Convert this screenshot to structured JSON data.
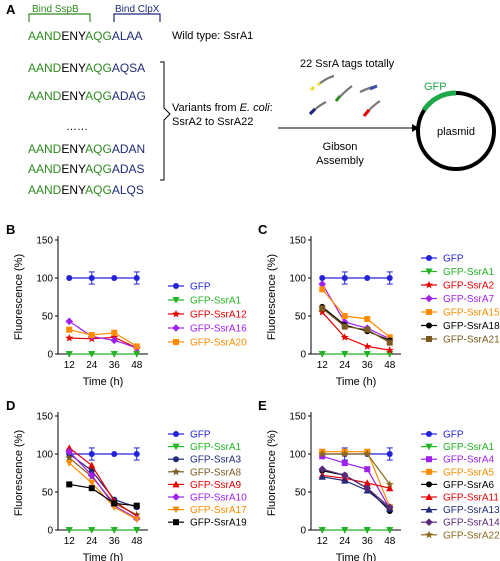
{
  "panel_a": {
    "letter": "A",
    "bind_sspb": "Bind SspB",
    "bind_clpx": "Bind ClpX",
    "seq_green": "AAND",
    "seq_black": "ENY",
    "seq_green2": "AQG",
    "sequences": [
      "ALAA",
      "AQSA",
      "ADAG",
      "ADAN",
      "ADAS",
      "ALQS"
    ],
    "dots": "……",
    "wild_type": "Wild type: SsrA1",
    "variants_line1_pre": "Variants from ",
    "variants_line1_italic": "E. coli",
    "variants_line1_post": ":",
    "variants_line2": "SsrA2 to SsrA22",
    "tags_total": "22 SsrA tags totally",
    "gibson1": "Gibson",
    "gibson2": "Assembly",
    "gfp": "GFP",
    "plasmid": "plasmid",
    "colors": {
      "green": "#2e8b1e",
      "navy": "#1f2a7a",
      "plasmid_green": "#1fa84a"
    }
  },
  "chart_data": [
    {
      "type": "line",
      "letter": "B",
      "xlabel": "Time (h)",
      "ylabel": "Fluorescence (%)",
      "x": [
        12,
        24,
        36,
        48
      ],
      "ylim": [
        0,
        150
      ],
      "yticks": [
        0,
        50,
        100,
        150
      ],
      "series": [
        {
          "name": "GFP",
          "color": "#2323d9",
          "marker": "circle",
          "values": [
            100,
            100,
            100,
            100
          ],
          "err": [
            0,
            8,
            0,
            8
          ]
        },
        {
          "name": "GFP-SsrA1",
          "color": "#22b422",
          "marker": "triangle-down",
          "values": [
            0,
            0,
            0,
            0
          ]
        },
        {
          "name": "GFP-SsrA12",
          "color": "#e60000",
          "marker": "star",
          "values": [
            21,
            20,
            22,
            8
          ]
        },
        {
          "name": "GFP-SsrA16",
          "color": "#a020f0",
          "marker": "diamond",
          "values": [
            43,
            23,
            18,
            8
          ]
        },
        {
          "name": "GFP-SsrA20",
          "color": "#ff8c00",
          "marker": "square",
          "values": [
            32,
            25,
            28,
            10
          ]
        }
      ]
    },
    {
      "type": "line",
      "letter": "C",
      "xlabel": "Time (h)",
      "ylabel": "Fluorescence (%)",
      "x": [
        12,
        24,
        36,
        48
      ],
      "ylim": [
        0,
        150
      ],
      "yticks": [
        0,
        50,
        100,
        150
      ],
      "series": [
        {
          "name": "GFP",
          "color": "#2323d9",
          "marker": "circle",
          "values": [
            100,
            100,
            100,
            100
          ],
          "err": [
            0,
            8,
            0,
            8
          ]
        },
        {
          "name": "GFP-SsrA1",
          "color": "#22b422",
          "marker": "triangle-down",
          "values": [
            0,
            0,
            0,
            0
          ]
        },
        {
          "name": "GFP-SsrA2",
          "color": "#e60000",
          "marker": "star",
          "values": [
            55,
            22,
            10,
            5
          ]
        },
        {
          "name": "GFP-SsrA7",
          "color": "#a020f0",
          "marker": "diamond",
          "values": [
            92,
            42,
            34,
            20
          ]
        },
        {
          "name": "GFP-SsrA15",
          "color": "#ff8c00",
          "marker": "square",
          "values": [
            85,
            50,
            46,
            22
          ]
        },
        {
          "name": "GFP-SsrA18",
          "color": "#000000",
          "marker": "circle",
          "values": [
            62,
            38,
            30,
            18
          ]
        },
        {
          "name": "GFP-SsrA21",
          "color": "#7a5a1e",
          "marker": "square",
          "values": [
            60,
            36,
            32,
            15
          ]
        }
      ]
    },
    {
      "type": "line",
      "letter": "D",
      "xlabel": "Time (h)",
      "ylabel": "Fluorescence (%)",
      "x": [
        12,
        24,
        36,
        48
      ],
      "ylim": [
        0,
        150
      ],
      "yticks": [
        0,
        50,
        100,
        150
      ],
      "series": [
        {
          "name": "GFP",
          "color": "#2323d9",
          "marker": "circle",
          "values": [
            100,
            100,
            100,
            100
          ],
          "err": [
            0,
            8,
            0,
            8
          ]
        },
        {
          "name": "GFP-SsrA1",
          "color": "#22b422",
          "marker": "triangle-down",
          "values": [
            0,
            0,
            0,
            0
          ]
        },
        {
          "name": "GFP-SsrA3",
          "color": "#1f2a7a",
          "marker": "circle",
          "values": [
            100,
            78,
            40,
            30
          ]
        },
        {
          "name": "GFP-SsrA8",
          "color": "#7a5a1e",
          "marker": "star",
          "values": [
            95,
            70,
            35,
            20
          ]
        },
        {
          "name": "GFP-SsrA9",
          "color": "#e60000",
          "marker": "triangle",
          "values": [
            108,
            85,
            38,
            18
          ]
        },
        {
          "name": "GFP-SsrA10",
          "color": "#a020f0",
          "marker": "diamond",
          "values": [
            103,
            72,
            32,
            15
          ]
        },
        {
          "name": "GFP-SsrA17",
          "color": "#ff8c00",
          "marker": "triangle-down",
          "values": [
            88,
            62,
            30,
            14
          ]
        },
        {
          "name": "GFP-SsrA19",
          "color": "#000000",
          "marker": "square",
          "values": [
            60,
            55,
            35,
            32
          ]
        }
      ]
    },
    {
      "type": "line",
      "letter": "E",
      "xlabel": "Time (h)",
      "ylabel": "Fluorescence (%)",
      "x": [
        12,
        24,
        36,
        48
      ],
      "ylim": [
        0,
        150
      ],
      "yticks": [
        0,
        50,
        100,
        150
      ],
      "series": [
        {
          "name": "GFP",
          "color": "#2323d9",
          "marker": "circle",
          "values": [
            100,
            100,
            100,
            100
          ],
          "err": [
            0,
            8,
            0,
            8
          ]
        },
        {
          "name": "GFP-SsrA1",
          "color": "#22b422",
          "marker": "triangle-down",
          "values": [
            0,
            0,
            0,
            0
          ]
        },
        {
          "name": "GFP-SsrA4",
          "color": "#a020f0",
          "marker": "square",
          "values": [
            97,
            88,
            80,
            28
          ]
        },
        {
          "name": "GFP-SsrA5",
          "color": "#ff8c00",
          "marker": "square",
          "values": [
            103,
            103,
            103,
            30
          ]
        },
        {
          "name": "GFP-SsrA6",
          "color": "#000000",
          "marker": "circle",
          "values": [
            78,
            72,
            55,
            25
          ]
        },
        {
          "name": "GFP-SsrA11",
          "color": "#e60000",
          "marker": "triangle",
          "values": [
            72,
            68,
            62,
            55
          ]
        },
        {
          "name": "GFP-SsrA13",
          "color": "#1f2a7a",
          "marker": "triangle",
          "values": [
            70,
            65,
            52,
            28
          ]
        },
        {
          "name": "GFP-SsrA14",
          "color": "#5a2a7a",
          "marker": "diamond",
          "values": [
            80,
            72,
            55,
            30
          ]
        },
        {
          "name": "GFP-SsrA22",
          "color": "#8a6a1e",
          "marker": "star",
          "values": [
            100,
            100,
            100,
            60
          ]
        }
      ]
    }
  ]
}
